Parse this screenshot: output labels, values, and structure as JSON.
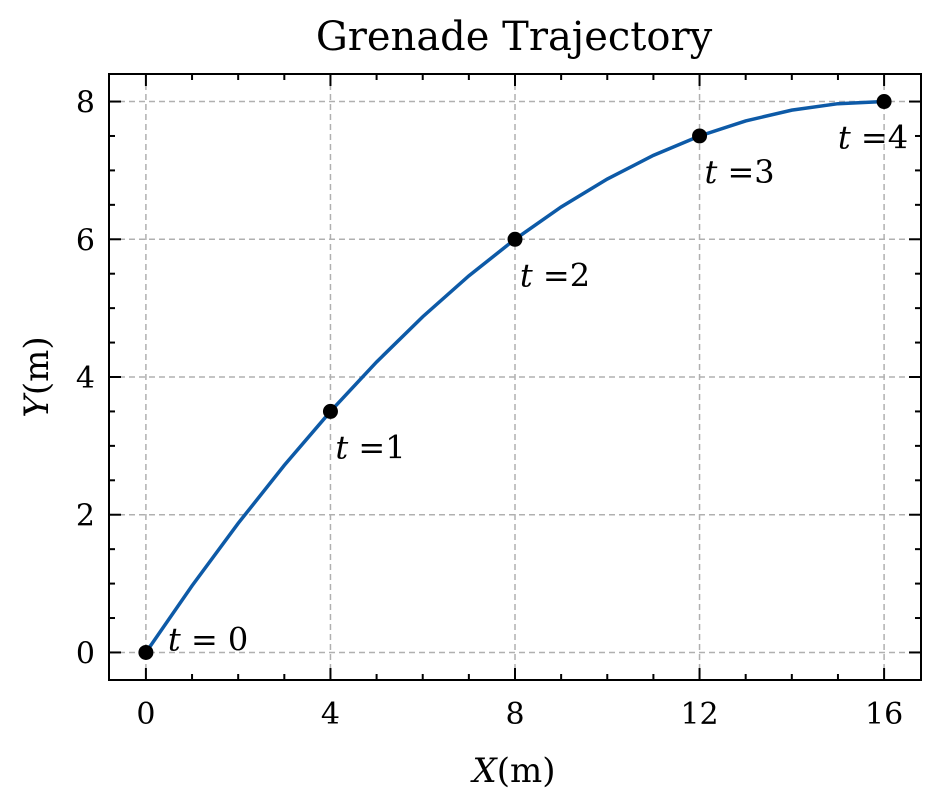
{
  "chart_data": {
    "type": "line",
    "title": "Grenade Trajectory",
    "xlabel": {
      "var": "X",
      "unit": "(m)"
    },
    "ylabel": {
      "var": "Y",
      "unit": "(m)"
    },
    "xlim": [
      -0.8,
      16.8
    ],
    "ylim": [
      -0.4,
      8.4
    ],
    "xticks": [
      0,
      4,
      8,
      12,
      16
    ],
    "yticks": [
      0,
      2,
      4,
      6,
      8
    ],
    "xticklabels": [
      "0",
      "4",
      "8",
      "12",
      "16"
    ],
    "yticklabels": [
      "0",
      "2",
      "4",
      "6",
      "8"
    ],
    "grid": true,
    "curve": {
      "color": "#0d5aa7",
      "x": [
        0,
        1,
        2,
        3,
        4,
        5,
        6,
        7,
        8,
        9,
        10,
        11,
        12,
        13,
        14,
        15,
        16
      ],
      "y": [
        0,
        0.96875,
        1.875,
        2.71875,
        3.5,
        4.21875,
        4.875,
        5.46875,
        6.0,
        6.46875,
        6.875,
        7.21875,
        7.5,
        7.71875,
        7.875,
        7.96875,
        8.0
      ]
    },
    "points": [
      {
        "x": 0,
        "y": 0,
        "label": {
          "var": "t",
          "text": " = 0"
        }
      },
      {
        "x": 4,
        "y": 3.5,
        "label": {
          "var": "t",
          "text": " =1"
        }
      },
      {
        "x": 8,
        "y": 6.0,
        "label": {
          "var": "t",
          "text": " =2"
        }
      },
      {
        "x": 12,
        "y": 7.5,
        "label": {
          "var": "t",
          "text": " =3"
        }
      },
      {
        "x": 16,
        "y": 8.0,
        "label": {
          "var": "t",
          "text": " =4"
        }
      }
    ]
  }
}
